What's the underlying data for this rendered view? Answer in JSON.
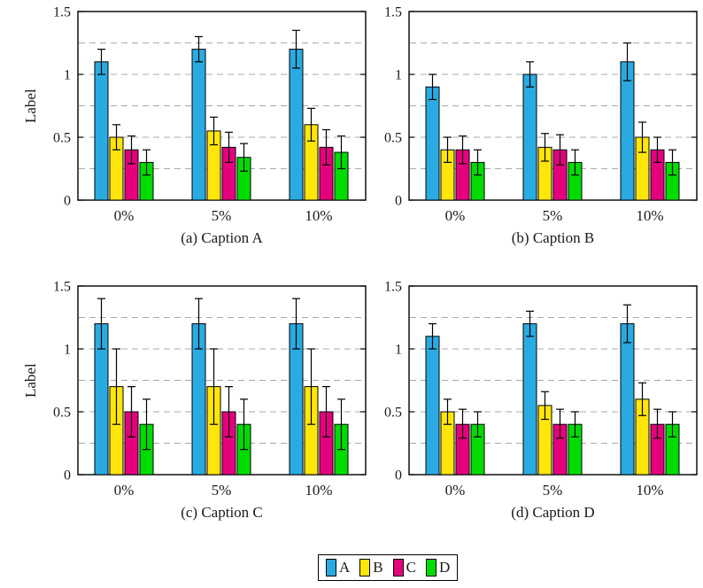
{
  "figure": {
    "background": "#ffffff",
    "axes": {
      "ylabel_text": "Label",
      "ylim": [
        0,
        1.5
      ],
      "yticks": [
        {
          "value": 0,
          "label": "0"
        },
        {
          "value": 0.5,
          "label": "0.5"
        },
        {
          "value": 1,
          "label": "1"
        },
        {
          "value": 1.5,
          "label": "1.5"
        }
      ],
      "grid_values": [
        0.25,
        0.5,
        0.75,
        1.0,
        1.25
      ],
      "grid_on": true,
      "grid_color": "#a8a8a8",
      "axis_color": "#000000",
      "categories": [
        "0%",
        "5%",
        "10%"
      ]
    },
    "series_colors": {
      "A": "#29ABE2",
      "B": "#FFE60A",
      "C": "#E5007D",
      "D": "#00DC00"
    }
  },
  "chart_data": [
    {
      "id": "a",
      "type": "bar",
      "caption": "(a) Caption A",
      "ylabel": "Label",
      "xlabel": "",
      "ylim": [
        0,
        1.5
      ],
      "legend_position": "none",
      "categories": [
        "0%",
        "5%",
        "10%"
      ],
      "series": [
        {
          "name": "A",
          "color": "#29ABE2",
          "values": [
            1.1,
            1.2,
            1.2
          ],
          "err_lo": [
            1.0,
            1.1,
            1.05
          ],
          "err_hi": [
            1.2,
            1.3,
            1.35
          ]
        },
        {
          "name": "B",
          "color": "#FFE60A",
          "values": [
            0.5,
            0.55,
            0.6
          ],
          "err_lo": [
            0.4,
            0.44,
            0.47
          ],
          "err_hi": [
            0.6,
            0.66,
            0.73
          ]
        },
        {
          "name": "C",
          "color": "#E5007D",
          "values": [
            0.4,
            0.42,
            0.42
          ],
          "err_lo": [
            0.29,
            0.3,
            0.28
          ],
          "err_hi": [
            0.51,
            0.54,
            0.56
          ]
        },
        {
          "name": "D",
          "color": "#00DC00",
          "values": [
            0.3,
            0.34,
            0.38
          ],
          "err_lo": [
            0.2,
            0.23,
            0.25
          ],
          "err_hi": [
            0.4,
            0.45,
            0.51
          ]
        }
      ]
    },
    {
      "id": "b",
      "type": "bar",
      "caption": "(b) Caption B",
      "xlabel": "",
      "ylim": [
        0,
        1.5
      ],
      "legend_position": "none",
      "categories": [
        "0%",
        "5%",
        "10%"
      ],
      "series": [
        {
          "name": "A",
          "color": "#29ABE2",
          "values": [
            0.9,
            1.0,
            1.1
          ],
          "err_lo": [
            0.8,
            0.9,
            0.95
          ],
          "err_hi": [
            1.0,
            1.1,
            1.25
          ]
        },
        {
          "name": "B",
          "color": "#FFE60A",
          "values": [
            0.4,
            0.42,
            0.5
          ],
          "err_lo": [
            0.3,
            0.31,
            0.38
          ],
          "err_hi": [
            0.5,
            0.53,
            0.62
          ]
        },
        {
          "name": "C",
          "color": "#E5007D",
          "values": [
            0.4,
            0.4,
            0.4
          ],
          "err_lo": [
            0.29,
            0.28,
            0.3
          ],
          "err_hi": [
            0.51,
            0.52,
            0.5
          ]
        },
        {
          "name": "D",
          "color": "#00DC00",
          "values": [
            0.3,
            0.3,
            0.3
          ],
          "err_lo": [
            0.2,
            0.2,
            0.2
          ],
          "err_hi": [
            0.4,
            0.4,
            0.4
          ]
        }
      ]
    },
    {
      "id": "c",
      "type": "bar",
      "caption": "(c) Caption C",
      "ylabel": "Label",
      "xlabel": "",
      "ylim": [
        0,
        1.5
      ],
      "legend_position": "none",
      "categories": [
        "0%",
        "5%",
        "10%"
      ],
      "series": [
        {
          "name": "A",
          "color": "#29ABE2",
          "values": [
            1.2,
            1.2,
            1.2
          ],
          "err_lo": [
            1.0,
            1.0,
            1.0
          ],
          "err_hi": [
            1.4,
            1.4,
            1.4
          ]
        },
        {
          "name": "B",
          "color": "#FFE60A",
          "values": [
            0.7,
            0.7,
            0.7
          ],
          "err_lo": [
            0.4,
            0.4,
            0.4
          ],
          "err_hi": [
            1.0,
            1.0,
            1.0
          ]
        },
        {
          "name": "C",
          "color": "#E5007D",
          "values": [
            0.5,
            0.5,
            0.5
          ],
          "err_lo": [
            0.3,
            0.3,
            0.3
          ],
          "err_hi": [
            0.7,
            0.7,
            0.7
          ]
        },
        {
          "name": "D",
          "color": "#00DC00",
          "values": [
            0.4,
            0.4,
            0.4
          ],
          "err_lo": [
            0.2,
            0.2,
            0.2
          ],
          "err_hi": [
            0.6,
            0.6,
            0.6
          ]
        }
      ]
    },
    {
      "id": "d",
      "type": "bar",
      "caption": "(d) Caption D",
      "xlabel": "",
      "ylim": [
        0,
        1.5
      ],
      "legend_position": "none",
      "categories": [
        "0%",
        "5%",
        "10%"
      ],
      "series": [
        {
          "name": "A",
          "color": "#29ABE2",
          "values": [
            1.1,
            1.2,
            1.2
          ],
          "err_lo": [
            1.0,
            1.1,
            1.05
          ],
          "err_hi": [
            1.2,
            1.3,
            1.35
          ]
        },
        {
          "name": "B",
          "color": "#FFE60A",
          "values": [
            0.5,
            0.55,
            0.6
          ],
          "err_lo": [
            0.4,
            0.44,
            0.47
          ],
          "err_hi": [
            0.6,
            0.66,
            0.73
          ]
        },
        {
          "name": "C",
          "color": "#E5007D",
          "values": [
            0.4,
            0.4,
            0.4
          ],
          "err_lo": [
            0.29,
            0.29,
            0.29
          ],
          "err_hi": [
            0.52,
            0.52,
            0.52
          ]
        },
        {
          "name": "D",
          "color": "#00DC00",
          "values": [
            0.4,
            0.4,
            0.4
          ],
          "err_lo": [
            0.3,
            0.3,
            0.3
          ],
          "err_hi": [
            0.5,
            0.5,
            0.5
          ]
        }
      ]
    }
  ],
  "legend": {
    "items": [
      {
        "label": "A",
        "color": "#29ABE2"
      },
      {
        "label": "B",
        "color": "#FFE60A"
      },
      {
        "label": "C",
        "color": "#E5007D"
      },
      {
        "label": "D",
        "color": "#00DC00"
      }
    ]
  }
}
